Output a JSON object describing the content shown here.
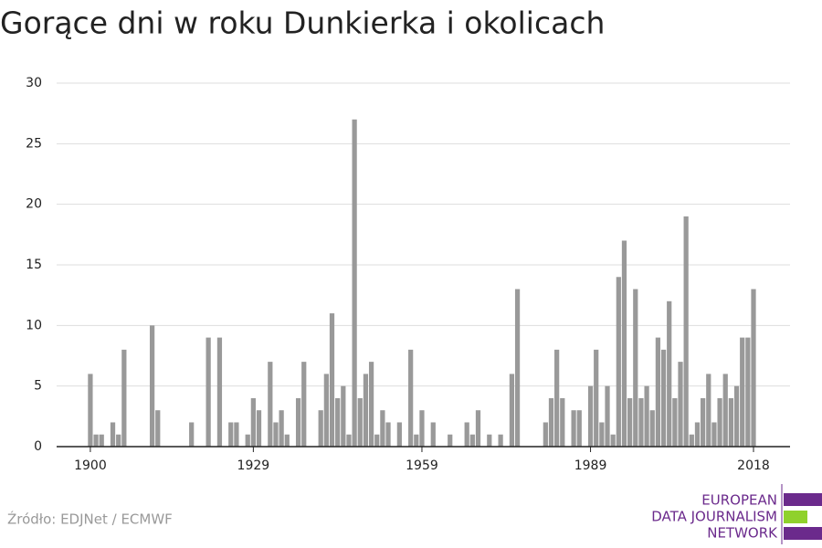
{
  "chart_data": {
    "type": "bar",
    "title": "Gorące dni w roku Dunkierka i okolicach",
    "x": [
      1900,
      1901,
      1902,
      1904,
      1905,
      1906,
      1911,
      1912,
      1918,
      1921,
      1923,
      1925,
      1926,
      1928,
      1929,
      1930,
      1932,
      1933,
      1934,
      1935,
      1937,
      1938,
      1941,
      1942,
      1943,
      1944,
      1945,
      1946,
      1947,
      1948,
      1949,
      1950,
      1951,
      1952,
      1953,
      1955,
      1957,
      1958,
      1959,
      1961,
      1964,
      1967,
      1968,
      1969,
      1971,
      1973,
      1975,
      1976,
      1981,
      1982,
      1983,
      1984,
      1986,
      1987,
      1989,
      1990,
      1991,
      1992,
      1993,
      1994,
      1995,
      1996,
      1997,
      1998,
      1999,
      2000,
      2001,
      2002,
      2003,
      2004,
      2005,
      2006,
      2007,
      2008,
      2009,
      2010,
      2011,
      2012,
      2013,
      2014,
      2015,
      2016,
      2017,
      2018
    ],
    "values": [
      6,
      1,
      1,
      2,
      1,
      8,
      10,
      3,
      2,
      9,
      9,
      2,
      2,
      1,
      4,
      3,
      7,
      2,
      3,
      1,
      4,
      7,
      3,
      6,
      11,
      4,
      5,
      1,
      27,
      4,
      6,
      7,
      1,
      3,
      2,
      2,
      8,
      1,
      3,
      2,
      1,
      2,
      1,
      3,
      1,
      1,
      6,
      13,
      2,
      4,
      8,
      4,
      3,
      3,
      5,
      8,
      2,
      5,
      1,
      14,
      17,
      4,
      13,
      4,
      5,
      3,
      9,
      8,
      12,
      4,
      7,
      19,
      1,
      2,
      4,
      6,
      2,
      4,
      6,
      4,
      5,
      9,
      9,
      13
    ],
    "color": "#999999",
    "xlim": [
      1894,
      2024.5
    ],
    "xticks": [
      1900,
      1929,
      1959,
      1989,
      2018
    ],
    "ylim": [
      0,
      30
    ],
    "yticks": [
      0,
      5,
      10,
      15,
      20,
      25,
      30
    ],
    "grid": true,
    "source": "Źródło: EDJNet / ECMWF",
    "logo_lines": [
      "EUROPEAN",
      "DATA JOURNALISM",
      "NETWORK"
    ]
  }
}
